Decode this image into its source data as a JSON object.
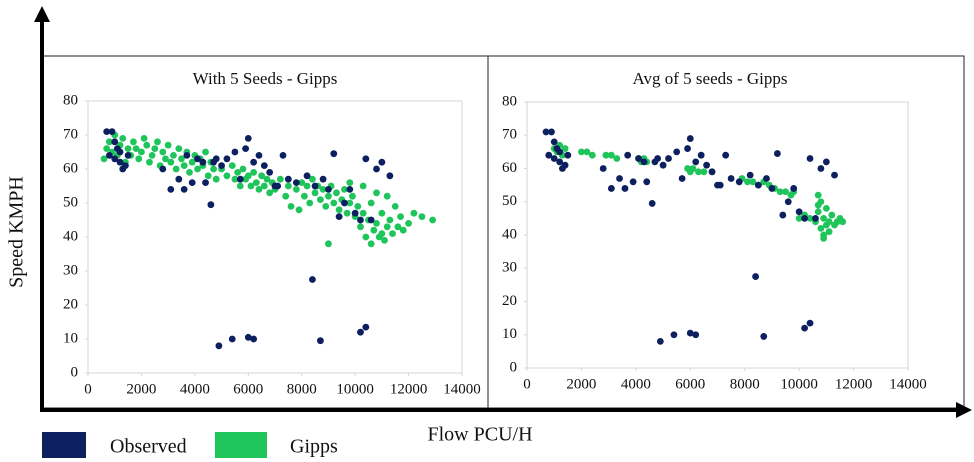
{
  "xlabel": "Flow PCU/H",
  "ylabel": "Speed KMPH",
  "chart_data": [
    {
      "type": "scatter",
      "title": "With 5 Seeds - Gipps",
      "xlim": [
        0,
        14000
      ],
      "xticks": [
        0,
        2000,
        4000,
        6000,
        8000,
        10000,
        12000,
        14000
      ],
      "ylim": [
        0,
        80
      ],
      "yticks": [
        0,
        10,
        20,
        30,
        40,
        50,
        60,
        70,
        80
      ],
      "series": [
        {
          "name": "Observed",
          "color": "#0c1f5e",
          "x": [
            700,
            900,
            800,
            1000,
            1100,
            1200,
            1300,
            1400,
            1500,
            1000,
            1200,
            2800,
            3100,
            3400,
            3600,
            3700,
            3900,
            4100,
            4300,
            4400,
            4600,
            4700,
            4800,
            5000,
            5200,
            5500,
            5700,
            5900,
            6000,
            6200,
            6400,
            6600,
            6800,
            7000,
            7100,
            7300,
            7500,
            7800,
            8200,
            8500,
            8800,
            9000,
            9200,
            9400,
            9600,
            9800,
            10000,
            10200,
            10400,
            10600,
            10800,
            11000,
            11300,
            8400,
            4900,
            5400,
            6000,
            6200,
            8700,
            10200,
            10400
          ],
          "values": [
            71,
            71,
            64,
            63,
            66,
            62,
            60,
            61,
            64,
            68,
            65,
            60,
            54,
            57,
            54,
            64,
            56,
            63,
            62,
            56,
            49.5,
            62,
            63,
            61,
            63,
            65,
            57,
            66,
            69,
            62,
            64,
            61,
            59,
            55,
            55,
            64,
            57,
            56,
            58,
            55,
            57,
            54,
            64.5,
            46,
            50,
            54,
            47,
            45,
            63,
            45,
            60,
            62,
            58,
            27.5,
            8,
            10,
            10.5,
            10,
            9.5,
            12,
            13.5
          ]
        },
        {
          "name": "Gipps",
          "color": "#1fc45b",
          "x": [
            600,
            700,
            800,
            900,
            1000,
            1100,
            1200,
            1300,
            1400,
            1500,
            1600,
            1700,
            1800,
            1900,
            2000,
            2100,
            2200,
            2300,
            2400,
            2500,
            2600,
            2700,
            2800,
            2900,
            3000,
            3100,
            3200,
            3300,
            3400,
            3500,
            3600,
            3700,
            3800,
            3900,
            4000,
            4100,
            4200,
            4300,
            4400,
            4500,
            4600,
            4700,
            4800,
            5000,
            5200,
            5400,
            5500,
            5600,
            5700,
            5800,
            5900,
            6000,
            6100,
            6200,
            6300,
            6400,
            6500,
            6600,
            6700,
            6800,
            6900,
            7000,
            7200,
            7400,
            7500,
            7600,
            7800,
            7900,
            8000,
            8100,
            8200,
            8300,
            8400,
            8500,
            8600,
            8700,
            8800,
            8900,
            9000,
            9000,
            9100,
            9200,
            9300,
            9400,
            9500,
            9600,
            9700,
            9800,
            9900,
            10000,
            10100,
            10200,
            10300,
            10400,
            10500,
            10600,
            10600,
            10700,
            10800,
            10900,
            11000,
            11000,
            11100,
            11200,
            11300,
            11400,
            11500,
            11600,
            11700,
            11800,
            12000,
            12200,
            12500,
            12900,
            10800,
            11200,
            10300,
            9800
          ],
          "values": [
            63,
            66,
            68,
            65,
            70,
            64,
            67,
            69,
            62,
            66,
            64,
            68,
            66,
            63,
            65,
            69,
            67,
            62,
            64,
            66,
            68,
            61,
            65,
            63,
            67,
            62,
            64,
            60,
            66,
            63,
            61,
            65,
            59,
            62,
            64,
            60,
            63,
            61,
            65,
            58,
            62,
            60,
            57,
            60,
            58,
            61,
            57,
            59,
            55,
            60,
            57,
            58,
            55,
            59,
            56,
            54,
            58,
            55,
            57,
            53,
            56,
            54,
            57,
            52,
            55,
            49,
            54,
            48,
            56,
            52,
            55,
            50,
            57,
            53,
            55,
            51,
            54,
            49,
            52,
            38,
            55,
            50,
            53,
            48,
            51,
            54,
            47,
            50,
            52,
            46,
            49,
            43,
            47,
            40,
            45,
            38,
            50,
            42,
            44,
            40,
            47,
            41,
            39,
            43,
            45,
            41,
            49,
            43,
            46,
            42,
            44,
            47,
            46,
            45,
            53,
            52,
            55,
            56
          ]
        }
      ]
    },
    {
      "type": "scatter",
      "title": "Avg of 5 seeds - Gipps",
      "xlim": [
        0,
        14000
      ],
      "xticks": [
        0,
        2000,
        4000,
        6000,
        8000,
        10000,
        12000,
        14000
      ],
      "ylim": [
        0,
        80
      ],
      "yticks": [
        0,
        10,
        20,
        30,
        40,
        50,
        60,
        70,
        80
      ],
      "series": [
        {
          "name": "Observed",
          "color": "#0c1f5e",
          "x": [
            700,
            900,
            800,
            1000,
            1100,
            1200,
            1300,
            1400,
            1500,
            1000,
            1200,
            2800,
            3100,
            3400,
            3600,
            3700,
            3900,
            4100,
            4300,
            4400,
            4600,
            4700,
            4800,
            5000,
            5200,
            5500,
            5700,
            5900,
            6000,
            6200,
            6400,
            6600,
            6800,
            7000,
            7100,
            7300,
            7500,
            7800,
            8200,
            8500,
            8800,
            9000,
            9200,
            9400,
            9600,
            9800,
            10000,
            10200,
            10400,
            10600,
            10800,
            11000,
            11300,
            8400,
            4900,
            5400,
            6000,
            6200,
            8700,
            10200,
            10400
          ],
          "values": [
            71,
            71,
            64,
            63,
            66,
            62,
            60,
            61,
            64,
            68,
            65,
            60,
            54,
            57,
            54,
            64,
            56,
            63,
            62,
            56,
            49.5,
            62,
            63,
            61,
            63,
            65,
            57,
            66,
            69,
            62,
            64,
            61,
            59,
            55,
            55,
            64,
            57,
            56,
            58,
            55,
            57,
            54,
            64.5,
            46,
            50,
            54,
            47,
            45,
            63,
            45,
            60,
            62,
            58,
            27.5,
            8,
            10,
            10.5,
            10,
            9.5,
            12,
            13.5
          ]
        },
        {
          "name": "Gipps",
          "color": "#1fc45b",
          "x": [
            1000,
            1100,
            1200,
            1300,
            1400,
            2000,
            2200,
            2400,
            2900,
            3100,
            3300,
            4100,
            4200,
            4300,
            4400,
            5900,
            6000,
            6100,
            6300,
            6500,
            6800,
            7900,
            8100,
            8300,
            8500,
            8700,
            8900,
            9100,
            9300,
            9500,
            9700,
            9800,
            10000,
            10200,
            10400,
            10600,
            10700,
            10700,
            10800,
            10800,
            10900,
            10900,
            11000,
            11000,
            11100,
            11100,
            11200,
            11300,
            11400,
            11500,
            11600,
            10900,
            10700
          ],
          "values": [
            66,
            65,
            67,
            64,
            66,
            65,
            65,
            64,
            64,
            64,
            63,
            63,
            62,
            63,
            62,
            60,
            59,
            60,
            59,
            59,
            59,
            57,
            56,
            56,
            55,
            56,
            55,
            54,
            53,
            53,
            52,
            53,
            45,
            46,
            45,
            44,
            52,
            47,
            42,
            50,
            40,
            45,
            43,
            48,
            41,
            44,
            46,
            43,
            44,
            45,
            44,
            39,
            49
          ]
        }
      ]
    }
  ]
}
